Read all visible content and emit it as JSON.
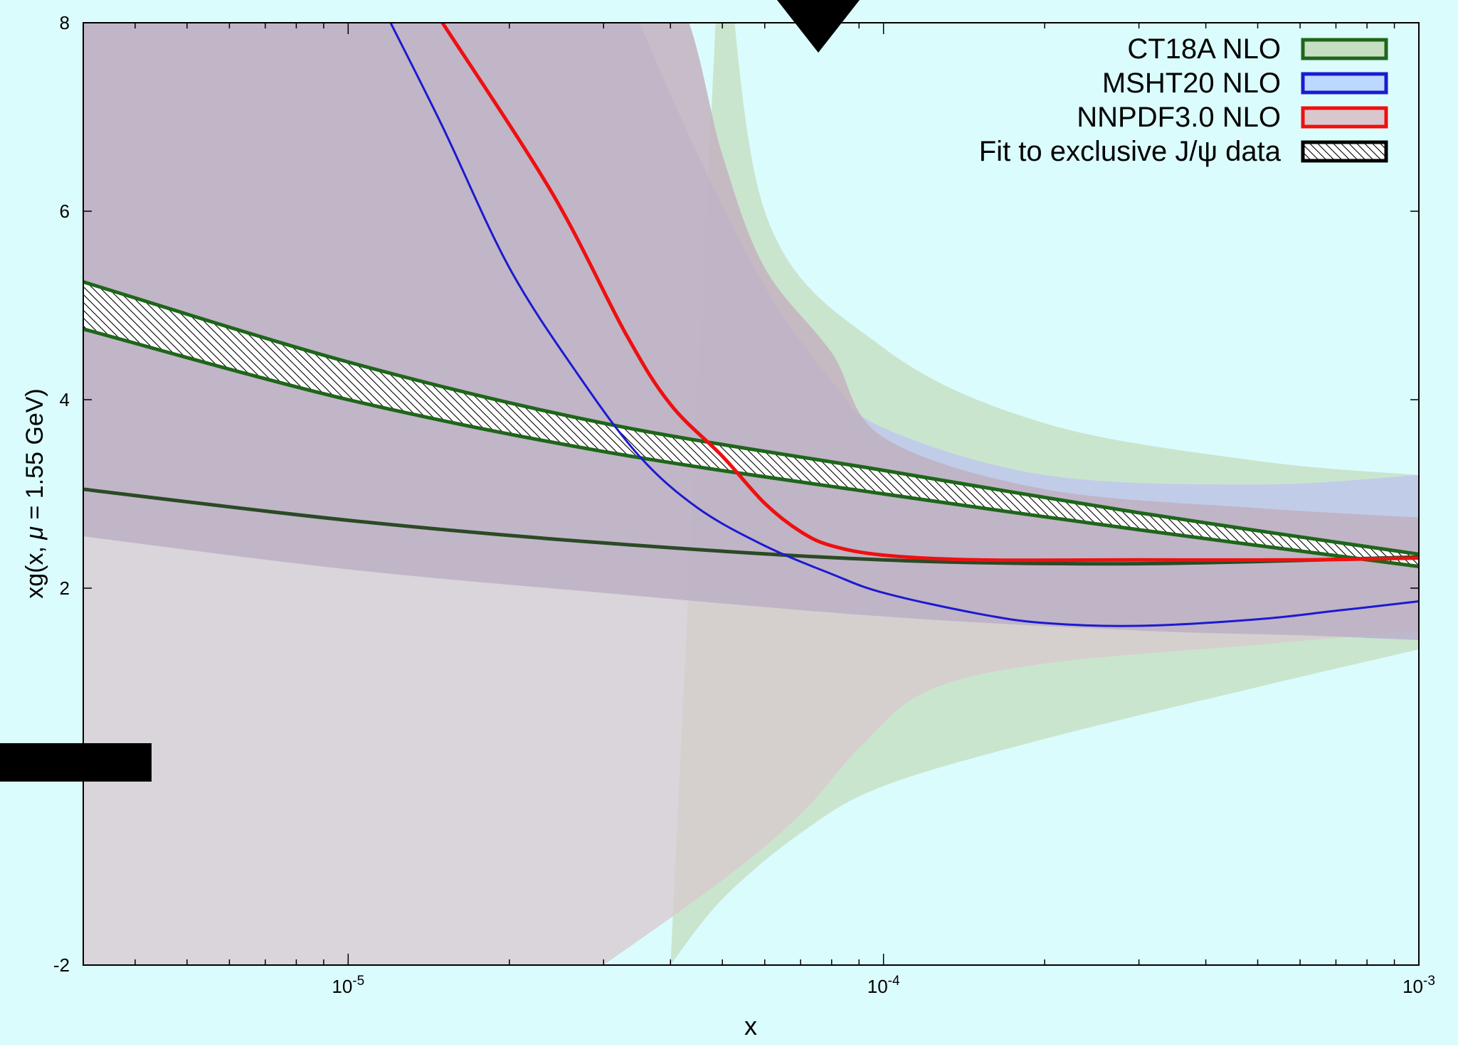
{
  "colors": {
    "background": "#dbfcfd",
    "frame": "#000000",
    "ct18a_band": "#c6dec2",
    "ct18a_line": "#1e661a",
    "msht20_band": "#bcd8fc",
    "msht20_line": "#1c1ad0",
    "nnpdf_band": "#d8c8cd",
    "nnpdf_line": "#ee1010",
    "overlap_band": "#c3bbdd",
    "overlap_dark": "#b8a8b8",
    "jpsi_hatch": "#000000",
    "jpsi_edge": "#1e661a",
    "mask": "#000000"
  },
  "chart_data": {
    "type": "line",
    "title": "",
    "xlabel": "x",
    "ylabel": "xg(x, μ = 1.55 GeV)",
    "ylabel_parts": {
      "pre": "xg(x, ",
      "mu": "μ",
      "post": " = 1.55 GeV)"
    },
    "x_scale": "log",
    "xlim": [
      3.2e-06,
      0.001
    ],
    "ylim": [
      -2,
      8
    ],
    "y_ticks": [
      {
        "value": -2,
        "label": "-2"
      },
      {
        "value": 2,
        "label": "2"
      },
      {
        "value": 4,
        "label": "4"
      },
      {
        "value": 6,
        "label": "6"
      },
      {
        "value": 8,
        "label": "8"
      }
    ],
    "x_ticks": [
      {
        "value": 1e-05,
        "base": "10",
        "exp": "-5"
      },
      {
        "value": 0.0001,
        "base": "10",
        "exp": "-4"
      },
      {
        "value": 0.001,
        "base": "10",
        "exp": "-3"
      }
    ],
    "grid": false,
    "legend_position": "top-right",
    "legend": [
      {
        "label": "CT18A NLO",
        "series": "ct18a"
      },
      {
        "label": "MSHT20 NLO",
        "series": "msht20"
      },
      {
        "label": "NNPDF3.0 NLO",
        "series": "nnpdf"
      },
      {
        "label": "Fit to exclusive J/ψ data",
        "series": "jpsi"
      }
    ],
    "series": [
      {
        "key": "nnpdf",
        "name": "NNPDF3.0 NLO",
        "style": "band+line",
        "upper": [
          [
            3.2e-06,
            9.5
          ],
          [
            3e-05,
            9.5
          ],
          [
            4.2e-05,
            8.2
          ],
          [
            5e-05,
            6.6
          ],
          [
            6e-05,
            5.4
          ],
          [
            8e-05,
            4.5
          ],
          [
            0.0001,
            3.6
          ],
          [
            0.0002,
            3.05
          ],
          [
            0.0005,
            2.85
          ],
          [
            0.001,
            2.75
          ]
        ],
        "lower": [
          [
            3e-05,
            -2.0
          ],
          [
            5e-05,
            -1.1
          ],
          [
            7e-05,
            -0.4
          ],
          [
            9e-05,
            0.3
          ],
          [
            0.00012,
            0.9
          ],
          [
            0.0002,
            1.2
          ],
          [
            0.0005,
            1.4
          ],
          [
            0.001,
            1.55
          ]
        ],
        "lower_left_floor": true,
        "central": [
          [
            1.5e-05,
            8.0
          ],
          [
            2.4e-05,
            6.2
          ],
          [
            3.3e-05,
            4.7
          ],
          [
            4e-05,
            3.95
          ],
          [
            5e-05,
            3.4
          ],
          [
            6e-05,
            2.9
          ],
          [
            7e-05,
            2.6
          ],
          [
            8e-05,
            2.45
          ],
          [
            0.0001,
            2.35
          ],
          [
            0.00015,
            2.3
          ],
          [
            0.0003,
            2.3
          ],
          [
            0.0006,
            2.3
          ],
          [
            0.001,
            2.32
          ]
        ]
      },
      {
        "key": "msht20",
        "name": "MSHT20 NLO",
        "style": "band+line",
        "upper": [
          [
            3.2e-06,
            9.5
          ],
          [
            2.7e-05,
            9.5
          ],
          [
            3.5e-05,
            8.0
          ],
          [
            4.5e-05,
            6.6
          ],
          [
            6e-05,
            5.2
          ],
          [
            8e-05,
            4.2
          ],
          [
            0.0001,
            3.7
          ],
          [
            0.0002,
            3.2
          ],
          [
            0.0005,
            3.1
          ],
          [
            0.001,
            3.2
          ]
        ],
        "lower": [
          [
            3.2e-06,
            2.55
          ],
          [
            1e-05,
            2.2
          ],
          [
            3e-05,
            1.95
          ],
          [
            0.0001,
            1.7
          ],
          [
            0.0003,
            1.55
          ],
          [
            0.0006,
            1.5
          ],
          [
            0.001,
            1.45
          ]
        ],
        "central": [
          [
            1.2e-05,
            8.0
          ],
          [
            1.5e-05,
            6.9
          ],
          [
            2e-05,
            5.4
          ],
          [
            2.7e-05,
            4.25
          ],
          [
            3.5e-05,
            3.4
          ],
          [
            4.5e-05,
            2.85
          ],
          [
            6e-05,
            2.45
          ],
          [
            8e-05,
            2.15
          ],
          [
            0.0001,
            1.95
          ],
          [
            0.00015,
            1.73
          ],
          [
            0.0002,
            1.63
          ],
          [
            0.0003,
            1.6
          ],
          [
            0.0005,
            1.67
          ],
          [
            0.0007,
            1.76
          ],
          [
            0.001,
            1.86
          ]
        ]
      },
      {
        "key": "ct18a",
        "name": "CT18A NLO",
        "style": "band+line",
        "upper": [
          [
            5e-05,
            9.5
          ],
          [
            6e-05,
            6.0
          ],
          [
            0.0001,
            4.55
          ],
          [
            0.0002,
            3.75
          ],
          [
            0.0005,
            3.35
          ],
          [
            0.001,
            3.2
          ]
        ],
        "lower": [
          [
            4e-05,
            -2.0
          ],
          [
            5e-05,
            -1.3
          ],
          [
            7e-05,
            -0.6
          ],
          [
            0.0001,
            -0.1
          ],
          [
            0.0002,
            0.4
          ],
          [
            0.0005,
            0.95
          ],
          [
            0.001,
            1.35
          ]
        ],
        "central": [
          [
            3.2e-06,
            3.05
          ],
          [
            1e-05,
            2.72
          ],
          [
            3e-05,
            2.48
          ],
          [
            0.0001,
            2.3
          ],
          [
            0.0003,
            2.26
          ],
          [
            0.001,
            2.33
          ]
        ]
      },
      {
        "key": "jpsi",
        "name": "Fit to exclusive J/ψ data",
        "style": "hatched-band",
        "upper": [
          [
            3.2e-06,
            5.25
          ],
          [
            1e-05,
            4.4
          ],
          [
            3e-05,
            3.75
          ],
          [
            0.0001,
            3.25
          ],
          [
            0.0003,
            2.8
          ],
          [
            0.001,
            2.36
          ]
        ],
        "lower": [
          [
            3.2e-06,
            4.75
          ],
          [
            1e-05,
            4.0
          ],
          [
            3e-05,
            3.45
          ],
          [
            0.0001,
            3.0
          ],
          [
            0.0003,
            2.62
          ],
          [
            0.001,
            2.23
          ]
        ]
      }
    ]
  }
}
